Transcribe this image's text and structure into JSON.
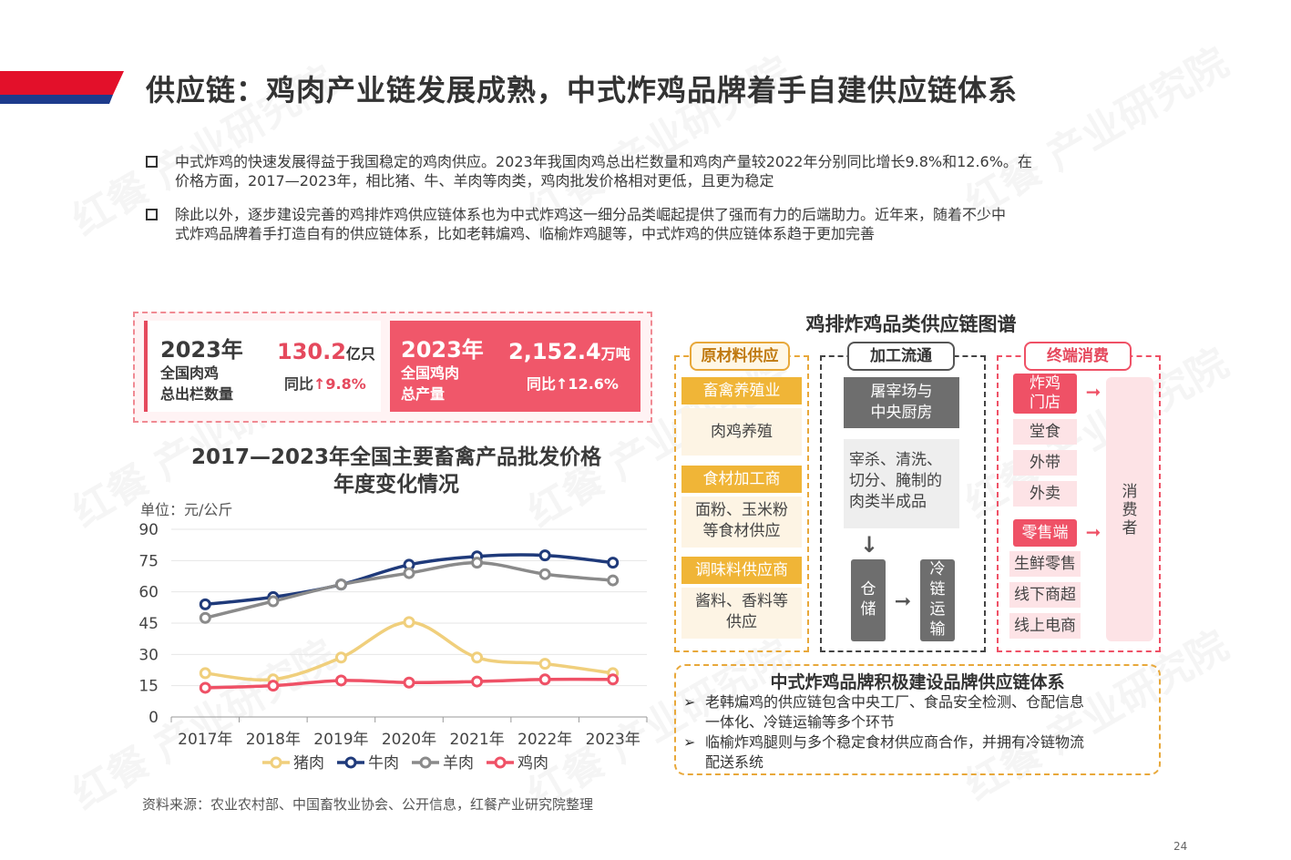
{
  "title": "供应链：鸡肉产业链发展成熟，中式炸鸡品牌着手自建供应链体系",
  "bullets": [
    {
      "line1": "中式炸鸡的快速发展得益于我国稳定的鸡肉供应。2023年我国肉鸡总出栏数量和鸡肉产量较2022年分别同比增长9.8%和12.6%。在",
      "line2": "价格方面，2017—2023年，相比猪、牛、羊肉等肉类，鸡肉批发价格相对更低，且更为稳定"
    },
    {
      "line1": "除此以外，逐步建设完善的鸡排炸鸡供应链体系也为中式炸鸡这一细分品类崛起提供了强而有力的后端助力。近年来，随着不少中",
      "line2": "式炸鸡品牌着手打造自有的供应链体系，比如老韩煸鸡、临榆炸鸡腿等，中式炸鸡的供应链体系趋于更加完善"
    }
  ],
  "kpi": {
    "left": {
      "year": "2023年",
      "label1": "全国肉鸡",
      "label2": "总出栏数量",
      "value": "130.2",
      "unit": "亿只",
      "yoy_label": "同比",
      "yoy": "9.8%"
    },
    "right": {
      "year": "2023年",
      "label1": "全国鸡肉",
      "label2": "总产量",
      "value": "2,152.4",
      "unit": "万吨",
      "yoy_label": "同比",
      "yoy": "12.6%"
    },
    "up_arrow": "↑"
  },
  "chart_title_line1": "2017—2023年全国主要畜禽产品批发价格",
  "chart_title_line2": "年度变化情况",
  "unit_label": "单位：元/公斤",
  "chart_data": {
    "type": "line",
    "x": [
      "2017年",
      "2018年",
      "2019年",
      "2020年",
      "2021年",
      "2022年",
      "2023年"
    ],
    "ylim": [
      0,
      90
    ],
    "yticks": [
      0,
      15,
      30,
      45,
      60,
      75,
      90
    ],
    "legend_position": "bottom",
    "series": [
      {
        "name": "猪肉",
        "color": "#f0cf7c",
        "values": [
          21,
          18,
          28.5,
          45.5,
          28.5,
          25.5,
          21
        ]
      },
      {
        "name": "牛肉",
        "color": "#1f3a7a",
        "values": [
          54,
          57.5,
          63.5,
          73,
          77,
          77.5,
          74
        ]
      },
      {
        "name": "羊肉",
        "color": "#8a8a8a",
        "values": [
          47.5,
          55.5,
          63.5,
          69,
          74,
          68.5,
          65.5
        ]
      },
      {
        "name": "鸡肉",
        "color": "#ef5166",
        "values": [
          14,
          15,
          17.5,
          16.5,
          17,
          18,
          18
        ]
      }
    ]
  },
  "source": "资料来源：农业农村部、中国畜牧业协会、公开信息，红餐产业研究院整理",
  "supply_chain": {
    "title": "鸡排炸鸡品类供应链图谱",
    "col1": {
      "header": "原材料供应",
      "groups": [
        {
          "name": "畜禽养殖业",
          "desc": "肉鸡养殖"
        },
        {
          "name": "食材加工商",
          "desc1": "面粉、玉米粉",
          "desc2": "等食材供应"
        },
        {
          "name": "调味料供应商",
          "desc1": "酱料、香料等",
          "desc2": "供应"
        }
      ]
    },
    "col2": {
      "header": "加工流通",
      "kitchen1": "屠宰场与",
      "kitchen2": "中央厨房",
      "process1": "宰杀、清洗、",
      "process2": "切分、腌制的",
      "process3": "肉类半成品",
      "storage": [
        "仓",
        "储"
      ],
      "coldchain": [
        "冷",
        "链",
        "运",
        "输"
      ],
      "down_arrow": "↓",
      "right_arrow": "➞"
    },
    "col3": {
      "header": "终端消费",
      "store1": "炸鸡",
      "store2": "门店",
      "store_items": [
        "堂食",
        "外带",
        "外卖"
      ],
      "retail": "零售端",
      "retail_items": [
        "生鲜零售",
        "线下商超",
        "线上电商"
      ],
      "consumer": [
        "消",
        "费",
        "者"
      ],
      "right_arrow": "➞"
    },
    "brand_box": {
      "title": "中式炸鸡品牌积极建设品牌供应链体系",
      "items": [
        {
          "line1": "老韩煸鸡的供应链包含中央工厂、食品安全检测、仓配信息",
          "line2": "一体化、冷链运输等多个环节"
        },
        {
          "line1": "临榆炸鸡腿则与多个稳定食材供应商合作，并拥有冷链物流",
          "line2": "配送系统"
        }
      ],
      "marker": "➢"
    }
  },
  "page_number": "24",
  "watermark": "红餐 产业研究院"
}
